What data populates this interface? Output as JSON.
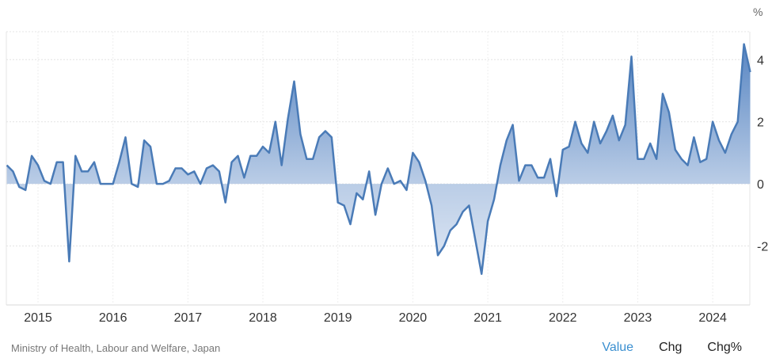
{
  "chart_data": {
    "type": "area",
    "title": "",
    "unit_label": "%",
    "xlabel": "",
    "ylabel": "",
    "ylim": [
      -3.9,
      4.9
    ],
    "yticks": [
      -2,
      0,
      2,
      4
    ],
    "xticks": [
      "2015",
      "2016",
      "2017",
      "2018",
      "2019",
      "2020",
      "2021",
      "2022",
      "2023",
      "2024"
    ],
    "grid": true,
    "start": "2014-08",
    "frequency": "monthly",
    "line_color": "#4a7bb7",
    "fill_top_color": "#4f7fbf",
    "fill_bottom_color": "#eef3fa",
    "series": [
      {
        "values": [
          0.6,
          0.4,
          -0.1,
          -0.2,
          0.9,
          0.6,
          0.1,
          0.0,
          0.7,
          0.7,
          -2.5,
          0.9,
          0.4,
          0.4,
          0.7,
          0.0,
          0.0,
          0.0,
          0.7,
          1.5,
          0.0,
          -0.1,
          1.4,
          1.2,
          0.0,
          0.0,
          0.1,
          0.5,
          0.5,
          0.3,
          0.4,
          0.0,
          0.5,
          0.6,
          0.4,
          -0.6,
          0.7,
          0.9,
          0.2,
          0.9,
          0.9,
          1.2,
          1.0,
          2.0,
          0.6,
          2.1,
          3.3,
          1.6,
          0.8,
          0.8,
          1.5,
          1.7,
          1.5,
          -0.6,
          -0.7,
          -1.3,
          -0.3,
          -0.5,
          0.4,
          -1.0,
          0.0,
          0.5,
          0.0,
          0.1,
          -0.2,
          1.0,
          0.7,
          0.1,
          -0.7,
          -2.3,
          -2.0,
          -1.5,
          -1.3,
          -0.9,
          -0.7,
          -1.8,
          -2.9,
          -1.2,
          -0.5,
          0.6,
          1.4,
          1.9,
          0.1,
          0.6,
          0.6,
          0.2,
          0.2,
          0.8,
          -0.4,
          1.1,
          1.2,
          2.0,
          1.3,
          1.0,
          2.0,
          1.3,
          1.7,
          2.2,
          1.4,
          1.9,
          4.1,
          0.8,
          0.8,
          1.3,
          0.8,
          2.9,
          2.3,
          1.1,
          0.8,
          0.6,
          1.5,
          0.7,
          0.8,
          2.0,
          1.4,
          1.0,
          1.6,
          2.0,
          4.5,
          3.6
        ]
      }
    ]
  },
  "footer": {
    "source": "Ministry of Health, Labour and Welfare, Japan",
    "tabs": [
      {
        "label": "Value",
        "active": true
      },
      {
        "label": "Chg",
        "active": false
      },
      {
        "label": "Chg%",
        "active": false
      }
    ]
  }
}
